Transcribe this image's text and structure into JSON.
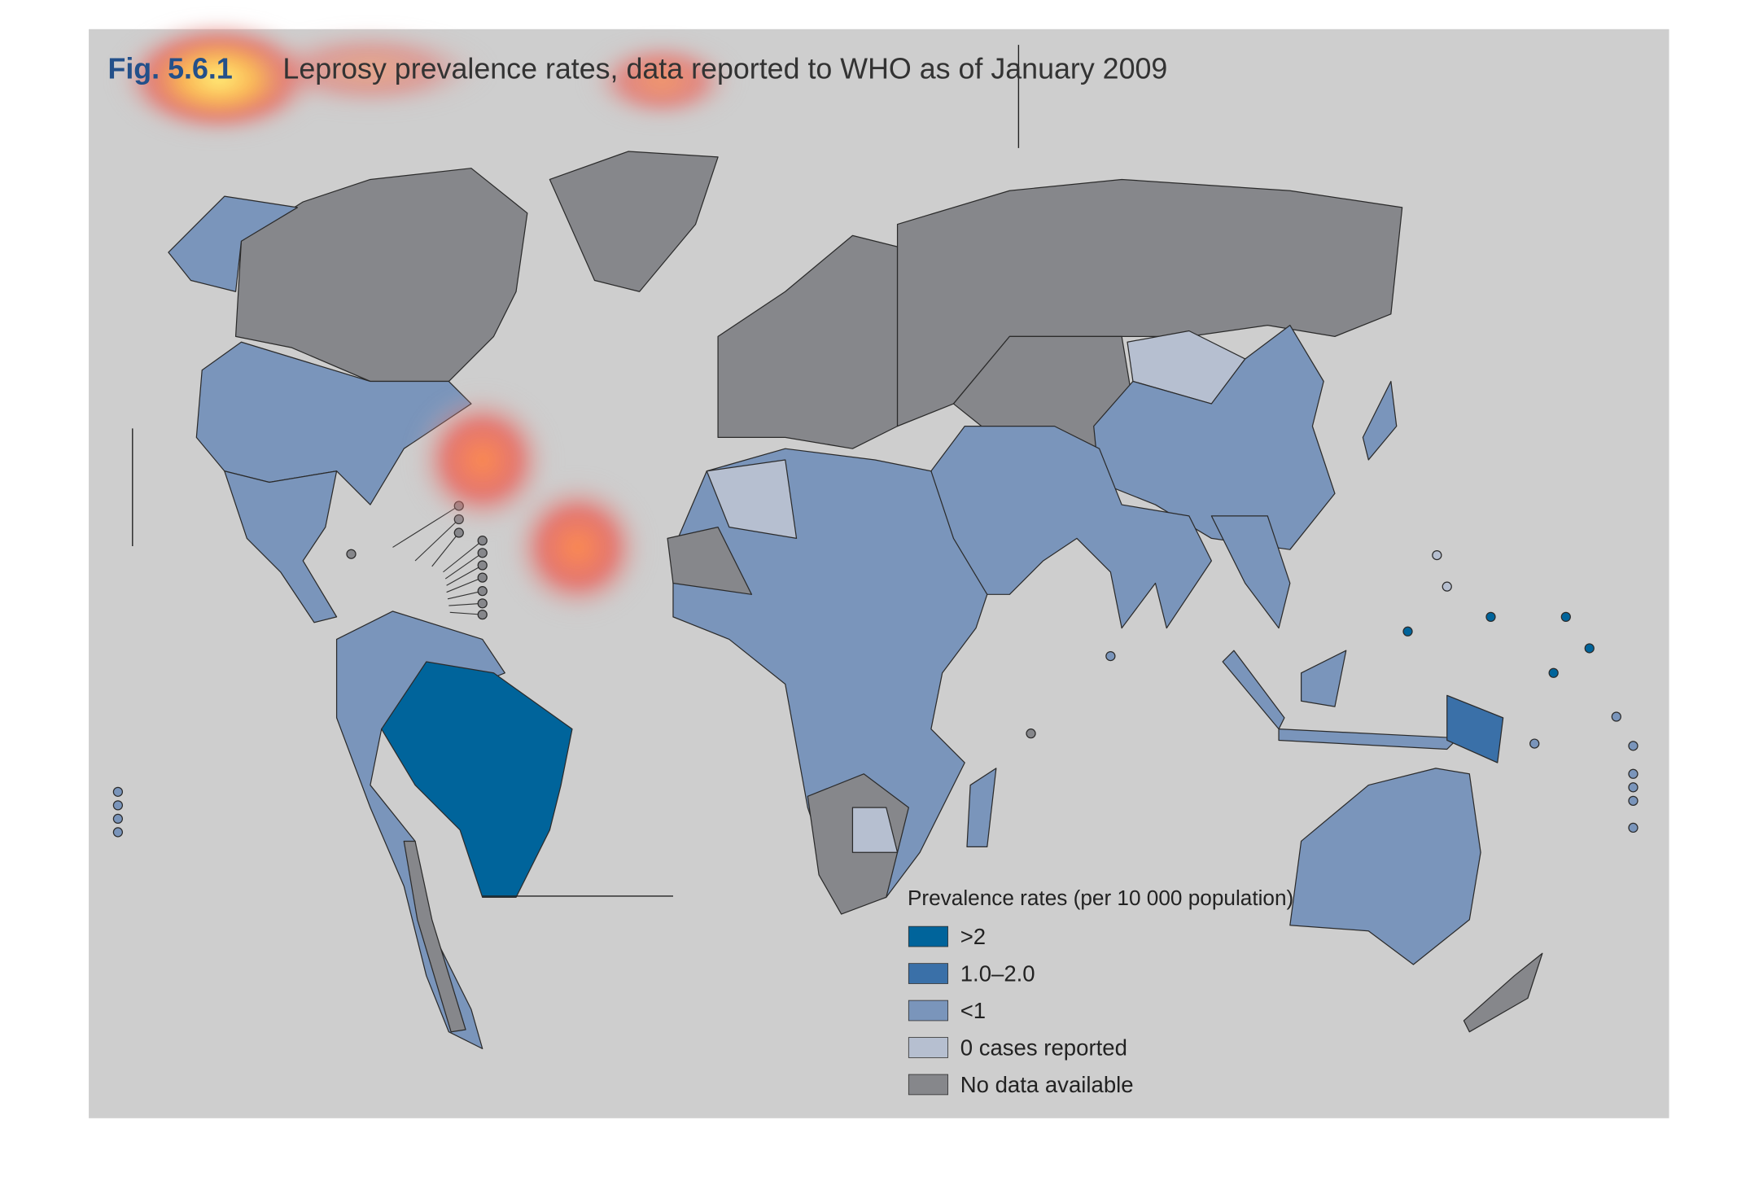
{
  "header": {
    "figure_number": "Fig. 5.6.1",
    "title": "Leprosy prevalence rates, data reported to WHO as of January 2009"
  },
  "legend": {
    "title": "Prevalence rates (per 10 000 population)",
    "items": [
      {
        "label": ">2",
        "color": "#00649b"
      },
      {
        "label": "1.0–2.0",
        "color": "#3a70a8"
      },
      {
        "label": "<1",
        "color": "#7a95bb"
      },
      {
        "label": "0 cases reported",
        "color": "#b6bfd0"
      },
      {
        "label": "No data available",
        "color": "#86878b"
      }
    ]
  }
}
